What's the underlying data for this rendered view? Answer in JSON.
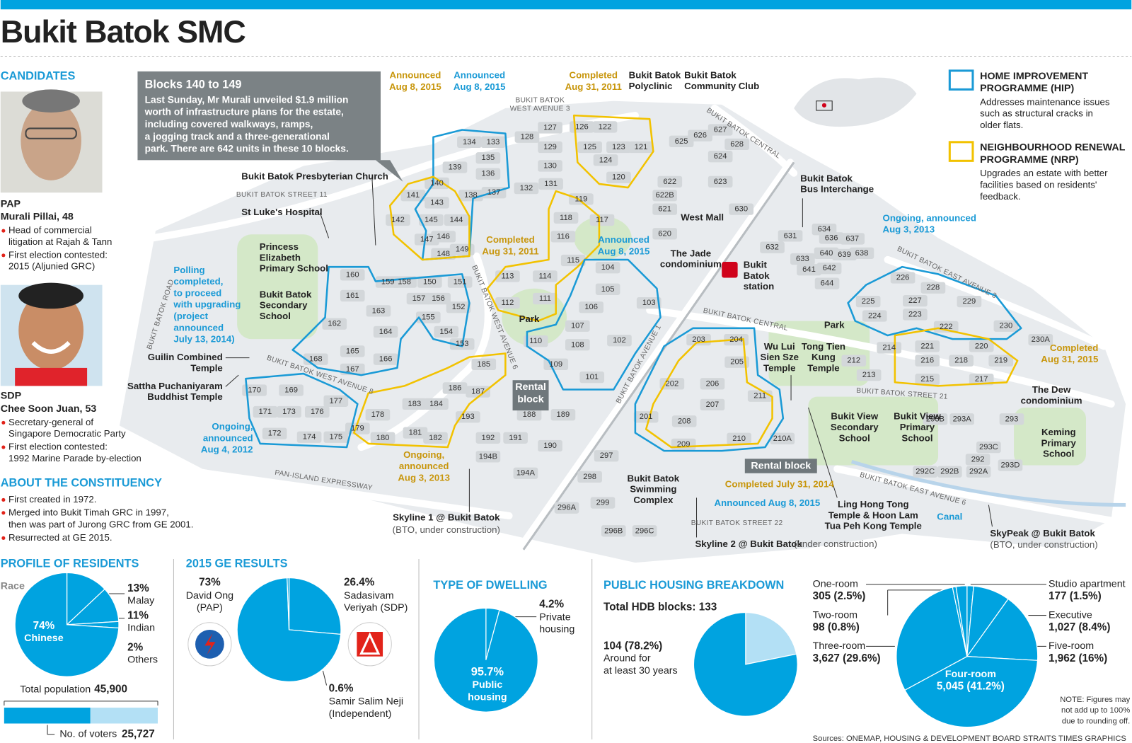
{
  "header": {
    "title": "Bukit Batok SMC"
  },
  "candidates": {
    "heading": "CANDIDATES",
    "list": [
      {
        "party": "PAP",
        "name": "Murali Pillai, 48",
        "points": [
          [
            "Head of commercial",
            "litigation at Rajah & Tann"
          ],
          [
            "First election contested:",
            "2015 (Aljunied GRC)"
          ]
        ]
      },
      {
        "party": "SDP",
        "name": "Chee Soon Juan, 53",
        "points": [
          [
            "Secretary-general of",
            "Singapore Democratic Party"
          ],
          [
            "First election contested:",
            "1992 Marine Parade by-election"
          ]
        ]
      }
    ]
  },
  "constituency": {
    "heading": "ABOUT THE CONSTITUENCY",
    "points": [
      [
        "First created in 1972."
      ],
      [
        "Merged into Bukit Timah GRC in 1997,",
        "then was part of Jurong GRC from GE 2001."
      ],
      [
        "Resurrected at GE 2015."
      ]
    ]
  },
  "callout": {
    "title": "Blocks 140 to 149",
    "lines": [
      "Last Sunday, Mr Murali unveiled $1.9 million",
      "worth of infrastructure plans for the estate,",
      "including covered walkways, ramps,",
      "a jogging track and a three-generational",
      "park. There are 642 units in these 10 blocks."
    ]
  },
  "legend": [
    {
      "title": [
        "HOME IMPROVEMENT",
        "PROGRAMME (HIP)"
      ],
      "text": [
        "Addresses maintenance issues",
        "such as structural cracks in",
        "older flats."
      ],
      "color": "#1a9ad6"
    },
    {
      "title": [
        "NEIGHBOURHOOD RENEWAL",
        "PROGRAMME (NRP)"
      ],
      "text": [
        "Upgrades an estate with better",
        "facilities based on residents'",
        "feedback."
      ],
      "color": "#f2c200"
    }
  ],
  "map": {
    "blocks": [
      "134",
      "133",
      "135",
      "136",
      "137",
      "139",
      "140",
      "138",
      "141",
      "143",
      "142",
      "145",
      "144",
      "147",
      "146",
      "148",
      "149",
      "128",
      "127",
      "129",
      "130",
      "132",
      "131",
      "126",
      "122",
      "125",
      "123",
      "121",
      "124",
      "120",
      "119",
      "118",
      "117",
      "116",
      "115",
      "113",
      "114",
      "112",
      "111",
      "104",
      "105",
      "103",
      "106",
      "107",
      "102",
      "110",
      "108",
      "109",
      "101",
      "625",
      "626",
      "627",
      "628",
      "624",
      "623",
      "622",
      "622B",
      "621",
      "630",
      "620",
      "634",
      "636",
      "637",
      "631",
      "632",
      "640",
      "639",
      "638",
      "633",
      "642",
      "641",
      "644",
      "226",
      "228",
      "227",
      "229",
      "225",
      "224",
      "223",
      "222",
      "230",
      "230A",
      "221",
      "220",
      "214",
      "216",
      "218",
      "219",
      "212",
      "213",
      "215",
      "217",
      "203",
      "204",
      "205",
      "202",
      "206",
      "211",
      "207",
      "201",
      "208",
      "209",
      "210",
      "210A",
      "160",
      "159",
      "158",
      "150",
      "151",
      "161",
      "157",
      "156",
      "152",
      "163",
      "155",
      "162",
      "164",
      "154",
      "153",
      "165",
      "166",
      "168",
      "167",
      "185",
      "186",
      "187",
      "183",
      "184",
      "188",
      "189",
      "193",
      "178",
      "181",
      "182",
      "179",
      "180",
      "192",
      "191",
      "190",
      "170",
      "169",
      "177",
      "171",
      "173",
      "176",
      "172",
      "174",
      "175",
      "194B",
      "194A",
      "297",
      "298",
      "299",
      "296A",
      "296B",
      "296C",
      "293B",
      "293A",
      "293",
      "293C",
      "292",
      "292C",
      "292B",
      "292A",
      "293D"
    ],
    "places": [
      {
        "lines": [
          "Bukit Batok",
          "Polyclinic"
        ]
      },
      {
        "lines": [
          "Bukit Batok",
          "Community Club"
        ]
      },
      {
        "lines": [
          "Bukit Batok Presbyterian Church"
        ]
      },
      {
        "lines": [
          "St Luke's Hospital"
        ]
      },
      {
        "lines": [
          "Princess",
          "Elizabeth",
          "Primary School"
        ]
      },
      {
        "lines": [
          "Bukit Batok",
          "Secondary",
          "School"
        ]
      },
      {
        "lines": [
          "Guilin Combined",
          "Temple"
        ]
      },
      {
        "lines": [
          "Sattha Puchaniyaram",
          "Buddhist Temple"
        ]
      },
      {
        "lines": [
          "Park"
        ]
      },
      {
        "lines": [
          "West Mall"
        ]
      },
      {
        "lines": [
          "The Jade",
          "condominium"
        ]
      },
      {
        "lines": [
          "Bukit",
          "Batok",
          "station"
        ]
      },
      {
        "lines": [
          "Bukit Batok",
          "Bus Interchange"
        ]
      },
      {
        "lines": [
          "Park"
        ]
      },
      {
        "lines": [
          "Wu Lui",
          "Sien Sze",
          "Temple"
        ]
      },
      {
        "lines": [
          "Tong Tien",
          "Kung",
          "Temple"
        ]
      },
      {
        "lines": [
          "Bukit View",
          "Secondary",
          "School"
        ]
      },
      {
        "lines": [
          "Bukit View",
          "Primary",
          "School"
        ]
      },
      {
        "lines": [
          "The Dew",
          "condominium"
        ]
      },
      {
        "lines": [
          "Keming",
          "Primary",
          "School"
        ]
      },
      {
        "lines": [
          "Bukit Batok",
          "Swimming",
          "Complex"
        ]
      },
      {
        "lines": [
          "Ling Hong Tong",
          "Temple & Hoon Lam",
          "Tua Peh Kong Temple"
        ]
      },
      {
        "lines": [
          "Skyline 1 @ Bukit Batok"
        ],
        "sub": "(BTO, under construction)"
      },
      {
        "lines": [
          "Skyline 2 @ Bukit Batok"
        ],
        "sub": "(under construction)"
      },
      {
        "lines": [
          "SkyPeak @ Bukit Batok"
        ],
        "sub": "(BTO, under construction)"
      }
    ],
    "streets": [
      [
        "BUKIT BATOK",
        "WEST AVENUE 3"
      ],
      [
        "BUKIT BATOK CENTRAL"
      ],
      [
        "BUKIT BATOK STREET 11"
      ],
      [
        "BUKIT BATOK ROAD"
      ],
      [
        "BUKIT BATOK WEST AVENUE 6"
      ],
      [
        "BUKIT BATOK WEST AVENUE 8"
      ],
      [
        "BUKIT BATOK AVENUE 1"
      ],
      [
        "BUKIT BATOK CENTRAL"
      ],
      [
        "BUKIT BATOK STREET 21"
      ],
      [
        "BUKIT BATOK EAST AVENUE 3"
      ],
      [
        "BUKIT BATOK EAST AVENUE 6"
      ],
      [
        "PAN-ISLAND EXPRESSWAY"
      ],
      [
        "BUKIT BATOK STREET 22"
      ]
    ],
    "annotations": [
      {
        "lines": [
          "Announced",
          "Aug 8, 2015"
        ],
        "color": "#c8960c"
      },
      {
        "lines": [
          "Announced",
          "Aug 8, 2015"
        ],
        "color": "#1a9ad6"
      },
      {
        "lines": [
          "Completed",
          "Aug 31, 2011"
        ],
        "color": "#c8960c"
      },
      {
        "lines": [
          "Completed",
          "Aug 31, 2011"
        ],
        "color": "#c8960c"
      },
      {
        "lines": [
          "Announced",
          "Aug 8, 2015"
        ],
        "color": "#1a9ad6"
      },
      {
        "lines": [
          "Polling",
          "completed,",
          "to proceed",
          "with upgrading",
          "(project",
          "announced",
          "July 13, 2014)"
        ],
        "color": "#1a9ad6"
      },
      {
        "lines": [
          "Ongoing,",
          "announced",
          "Aug 4, 2012"
        ],
        "color": "#1a9ad6"
      },
      {
        "lines": [
          "Ongoing,",
          "announced",
          "Aug 3, 2013"
        ],
        "color": "#c8960c"
      },
      {
        "lines": [
          "Ongoing, announced",
          "Aug 3, 2013"
        ],
        "color": "#1a9ad6"
      },
      {
        "lines": [
          "Completed",
          "Aug 31, 2015"
        ],
        "color": "#c8960c"
      },
      {
        "lines": [
          "Completed July 31, 2014"
        ],
        "color": "#c8960c"
      },
      {
        "lines": [
          "Announced Aug 8, 2015"
        ],
        "color": "#1a9ad6"
      },
      {
        "lines": [
          "Canal"
        ],
        "color": "#1a9ad6"
      }
    ],
    "rental": [
      [
        "Rental",
        "block"
      ],
      [
        "Rental block"
      ]
    ]
  },
  "chart_data": [
    {
      "type": "pie",
      "title": "PROFILE OF RESIDENTS",
      "subtitle": "Race",
      "categories": [
        "Malay",
        "Indian",
        "Others",
        "Chinese"
      ],
      "values": [
        13,
        11,
        2,
        74
      ],
      "value_labels": [
        "13%",
        "11%",
        "2%",
        "74%"
      ],
      "colors": [
        "#00a3e0",
        "#00a3e0",
        "#00a3e0",
        "#00a3e0"
      ]
    },
    {
      "type": "bar",
      "categories": [
        "Total population",
        "No. of voters"
      ],
      "values": [
        45900,
        25727
      ],
      "value_labels": [
        "45,900",
        "25,727"
      ],
      "colors": [
        "#b3e0f5",
        "#00a3e0"
      ]
    },
    {
      "type": "pie",
      "title": "2015 GE RESULTS",
      "categories": [
        [
          "Sadasivam",
          "Veriyah (SDP)"
        ],
        [
          "David Ong",
          "(PAP)"
        ],
        [
          "Samir Salim Neji",
          "(Independent)"
        ]
      ],
      "values": [
        26.4,
        73,
        0.6
      ],
      "value_labels": [
        "26.4%",
        "73%",
        "0.6%"
      ],
      "colors": [
        "#00a3e0",
        "#00a3e0",
        "#00a3e0"
      ]
    },
    {
      "type": "pie",
      "title": "TYPE OF DWELLING",
      "categories": [
        [
          "Private",
          "housing"
        ],
        [
          "Public",
          "housing"
        ]
      ],
      "values": [
        4.2,
        95.7
      ],
      "value_labels": [
        "4.2%",
        "95.7%"
      ],
      "colors": [
        "#00a3e0",
        "#00a3e0"
      ]
    },
    {
      "type": "pie",
      "title": "PUBLIC HOUSING BREAKDOWN",
      "subtitle": "Total HDB blocks: 133",
      "categories": [
        null,
        [
          "Around for",
          "at least 30 years"
        ]
      ],
      "values": [
        21.8,
        78.2
      ],
      "value_labels": [
        null,
        "104 (78.2%)"
      ],
      "colors": [
        "#b3e0f5",
        "#00a3e0"
      ]
    },
    {
      "type": "pie",
      "categories": [
        "Studio apartment",
        "Executive",
        "Five-room",
        "Four-room",
        "Three-room",
        "Two-room",
        "One-room"
      ],
      "values": [
        1.5,
        8.4,
        16,
        41.2,
        29.6,
        0.8,
        2.5
      ],
      "value_labels": [
        "177 (1.5%)",
        "1,027 (8.4%)",
        "1,962 (16%)",
        "5,045 (41.2%)",
        "3,627 (29.6%)",
        "98 (0.8%)",
        "305 (2.5%)"
      ],
      "colors": [
        "#00a3e0",
        "#00a3e0",
        "#00a3e0",
        "#00a3e0",
        "#00a3e0",
        "#00a3e0",
        "#00a3e0"
      ]
    }
  ],
  "note": [
    "NOTE: Figures may",
    "not add up to 100%",
    "due to rounding off."
  ],
  "sources": "Sources: ONEMAP, HOUSING & DEVELOPMENT BOARD   STRAITS TIMES GRAPHICS"
}
